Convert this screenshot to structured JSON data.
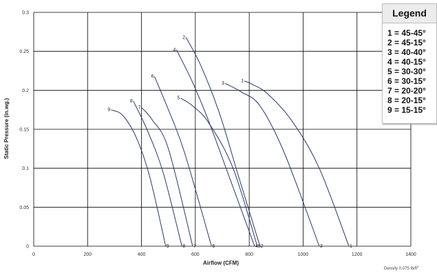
{
  "chart_data": {
    "type": "line",
    "title": "",
    "xlabel": "Airflow (CFM)",
    "ylabel": "Static Pressure (in.wg.)",
    "xlim": [
      0,
      1400
    ],
    "ylim": [
      0,
      0.3
    ],
    "x_ticks": [
      "0",
      "200",
      "400",
      "600",
      "800",
      "1000",
      "1200",
      "1400"
    ],
    "y_ticks": [
      "0",
      "0.05",
      "0.1",
      "0.15",
      "0.2",
      "0.25",
      "0.3"
    ],
    "grid": true,
    "legend_position": "top-right",
    "series": [
      {
        "name": "1",
        "label": "1 = 45-45°",
        "x": [
          782,
          810,
          870,
          960,
          1060,
          1170
        ],
        "y": [
          0.212,
          0.208,
          0.195,
          0.16,
          0.1,
          0.0
        ]
      },
      {
        "name": "2",
        "label": "2 = 45-15°",
        "x": [
          565,
          620,
          690,
          760,
          840
        ],
        "y": [
          0.268,
          0.232,
          0.17,
          0.09,
          0.0
        ]
      },
      {
        "name": "3",
        "label": "3 = 40-40°",
        "x": [
          710,
          770,
          840,
          930,
          1060
        ],
        "y": [
          0.209,
          0.198,
          0.18,
          0.12,
          0.0
        ]
      },
      {
        "name": "4",
        "label": "4 = 40-15°",
        "x": [
          530,
          590,
          650,
          730,
          820
        ],
        "y": [
          0.252,
          0.21,
          0.16,
          0.085,
          0.0
        ]
      },
      {
        "name": "5",
        "label": "5 = 30-30°",
        "x": [
          545,
          590,
          650,
          740,
          830
        ],
        "y": [
          0.19,
          0.18,
          0.158,
          0.1,
          0.0
        ]
      },
      {
        "name": "6",
        "label": "6 = 30-15°",
        "x": [
          448,
          500,
          560,
          660
        ],
        "y": [
          0.218,
          0.175,
          0.12,
          0.0
        ]
      },
      {
        "name": "7",
        "label": "7 = 20-20°",
        "x": [
          400,
          440,
          500,
          590
        ],
        "y": [
          0.178,
          0.162,
          0.125,
          0.0
        ]
      },
      {
        "name": "8",
        "label": "8 = 20-15°",
        "x": [
          370,
          420,
          480,
          550
        ],
        "y": [
          0.186,
          0.15,
          0.095,
          0.0
        ]
      },
      {
        "name": "9",
        "label": "9 = 15-15°",
        "x": [
          287,
          330,
          380,
          430,
          490
        ],
        "y": [
          0.175,
          0.168,
          0.14,
          0.09,
          0.0
        ]
      }
    ],
    "legend": {
      "title": "Legend",
      "entries": [
        "1 = 45-45°",
        "2 = 45-15°",
        "3 = 40-40°",
        "4 = 40-15°",
        "5 = 30-30°",
        "6 = 30-15°",
        "7 = 20-20°",
        "8 = 20-15°",
        "9 = 15-15°"
      ]
    },
    "colors": {
      "line": "#27376b",
      "grid": "#000000"
    }
  },
  "footnote": {
    "text": "Density 0.075 lb/ft",
    "superscript": "3"
  }
}
